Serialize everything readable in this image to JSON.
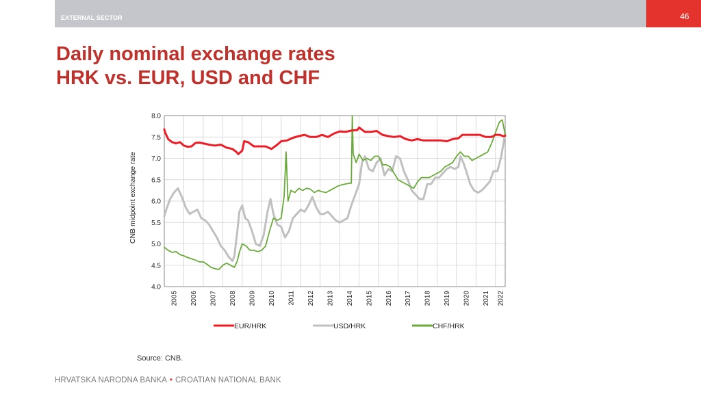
{
  "header": {
    "section": "EXTERNAL SECTOR",
    "page_number": "46"
  },
  "title": {
    "line1": "Daily nominal exchange rates",
    "line2": "HRK vs. EUR, USD and CHF"
  },
  "source": "Source: CNB.",
  "footer": {
    "left": "HRVATSKA NARODNA BANKA",
    "separator": "•",
    "right": "CROATIAN NATIONAL BANK"
  },
  "colors": {
    "brand_red": "#e4332d",
    "title_red": "#c0312b",
    "eur": "#ee1c25",
    "usd": "#c0c0c0",
    "chf": "#6aaa3a"
  },
  "chart_data": {
    "type": "line",
    "ylabel": "CNB midpoint exchange rate",
    "xlabel": "",
    "ylim": [
      4.0,
      8.0
    ],
    "yticks": [
      "4.0",
      "4.5",
      "5.0",
      "5.5",
      "6.0",
      "6.5",
      "7.0",
      "7.5",
      "8.0"
    ],
    "xlim": [
      2005.0,
      2022.5
    ],
    "xticks": [
      "2005",
      "2006",
      "2007",
      "2008",
      "2009",
      "2010",
      "2011",
      "2012",
      "2013",
      "2014",
      "2015",
      "2016",
      "2017",
      "2018",
      "2019",
      "2020",
      "2021",
      "2022"
    ],
    "grid": true,
    "legend_position": "bottom",
    "series": [
      {
        "name": "EUR/HRK",
        "color": "#ee1c25",
        "x": [
          2005.0,
          2005.05,
          2005.2,
          2005.4,
          2005.6,
          2005.8,
          2006.0,
          2006.2,
          2006.4,
          2006.6,
          2006.8,
          2007.0,
          2007.3,
          2007.6,
          2007.9,
          2008.2,
          2008.5,
          2008.7,
          2008.8,
          2009.0,
          2009.1,
          2009.3,
          2009.6,
          2009.9,
          2010.2,
          2010.5,
          2010.8,
          2011.0,
          2011.3,
          2011.6,
          2011.9,
          2012.2,
          2012.5,
          2012.8,
          2013.1,
          2013.4,
          2013.7,
          2014.0,
          2014.3,
          2014.6,
          2014.9,
          2015.0,
          2015.3,
          2015.6,
          2015.9,
          2016.2,
          2016.5,
          2016.8,
          2017.1,
          2017.4,
          2017.7,
          2018.0,
          2018.3,
          2018.6,
          2018.9,
          2019.2,
          2019.5,
          2019.8,
          2020.1,
          2020.3,
          2020.6,
          2020.9,
          2021.2,
          2021.5,
          2021.8,
          2022.0,
          2022.2,
          2022.4,
          2022.5
        ],
        "values": [
          7.68,
          7.6,
          7.45,
          7.38,
          7.35,
          7.38,
          7.3,
          7.27,
          7.28,
          7.36,
          7.37,
          7.35,
          7.32,
          7.3,
          7.32,
          7.25,
          7.22,
          7.15,
          7.1,
          7.18,
          7.4,
          7.38,
          7.28,
          7.28,
          7.28,
          7.22,
          7.32,
          7.4,
          7.42,
          7.48,
          7.52,
          7.55,
          7.5,
          7.5,
          7.55,
          7.5,
          7.58,
          7.63,
          7.62,
          7.65,
          7.66,
          7.72,
          7.62,
          7.62,
          7.64,
          7.55,
          7.52,
          7.5,
          7.52,
          7.45,
          7.42,
          7.45,
          7.42,
          7.42,
          7.42,
          7.42,
          7.4,
          7.45,
          7.47,
          7.55,
          7.55,
          7.55,
          7.55,
          7.5,
          7.5,
          7.55,
          7.55,
          7.52,
          7.53
        ]
      },
      {
        "name": "USD/HRK",
        "color": "#c0c0c0",
        "x": [
          2005.0,
          2005.1,
          2005.3,
          2005.5,
          2005.7,
          2005.9,
          2006.1,
          2006.3,
          2006.5,
          2006.7,
          2006.9,
          2007.1,
          2007.3,
          2007.5,
          2007.7,
          2007.9,
          2008.1,
          2008.3,
          2008.5,
          2008.6,
          2008.75,
          2008.85,
          2009.0,
          2009.15,
          2009.3,
          2009.5,
          2009.7,
          2009.9,
          2010.1,
          2010.3,
          2010.45,
          2010.6,
          2010.8,
          2011.0,
          2011.2,
          2011.4,
          2011.6,
          2011.8,
          2012.0,
          2012.2,
          2012.4,
          2012.6,
          2012.8,
          2013.0,
          2013.2,
          2013.4,
          2013.6,
          2013.8,
          2014.0,
          2014.2,
          2014.4,
          2014.6,
          2014.8,
          2015.0,
          2015.15,
          2015.3,
          2015.5,
          2015.7,
          2015.9,
          2016.1,
          2016.3,
          2016.5,
          2016.7,
          2016.9,
          2017.1,
          2017.3,
          2017.5,
          2017.7,
          2017.9,
          2018.1,
          2018.3,
          2018.5,
          2018.7,
          2018.9,
          2019.1,
          2019.3,
          2019.5,
          2019.7,
          2019.9,
          2020.1,
          2020.2,
          2020.35,
          2020.5,
          2020.7,
          2020.9,
          2021.1,
          2021.3,
          2021.5,
          2021.7,
          2021.9,
          2022.1,
          2022.3,
          2022.5
        ],
        "values": [
          5.65,
          5.8,
          6.05,
          6.2,
          6.3,
          6.1,
          5.85,
          5.7,
          5.75,
          5.8,
          5.6,
          5.55,
          5.45,
          5.3,
          5.15,
          4.95,
          4.85,
          4.7,
          4.6,
          4.72,
          5.3,
          5.75,
          5.9,
          5.6,
          5.55,
          5.3,
          5.0,
          4.95,
          5.2,
          5.75,
          6.05,
          5.7,
          5.45,
          5.4,
          5.15,
          5.3,
          5.6,
          5.7,
          5.8,
          5.75,
          5.9,
          6.1,
          5.85,
          5.7,
          5.7,
          5.75,
          5.65,
          5.55,
          5.5,
          5.55,
          5.6,
          5.9,
          6.15,
          6.4,
          6.9,
          7.05,
          6.75,
          6.7,
          6.9,
          7.0,
          6.6,
          6.75,
          6.7,
          7.05,
          7.0,
          6.7,
          6.5,
          6.25,
          6.15,
          6.05,
          6.05,
          6.4,
          6.4,
          6.55,
          6.55,
          6.65,
          6.75,
          6.8,
          6.75,
          6.8,
          7.05,
          6.9,
          6.7,
          6.4,
          6.25,
          6.2,
          6.25,
          6.35,
          6.45,
          6.7,
          6.7,
          7.05,
          7.6
        ]
      },
      {
        "name": "CHF/HRK",
        "color": "#6aaa3a",
        "x": [
          2005.0,
          2005.2,
          2005.4,
          2005.6,
          2005.8,
          2006.0,
          2006.2,
          2006.4,
          2006.6,
          2006.8,
          2007.0,
          2007.2,
          2007.4,
          2007.6,
          2007.8,
          2008.0,
          2008.2,
          2008.4,
          2008.6,
          2008.75,
          2008.85,
          2009.0,
          2009.2,
          2009.4,
          2009.6,
          2009.8,
          2010.0,
          2010.2,
          2010.4,
          2010.6,
          2010.8,
          2011.0,
          2011.15,
          2011.25,
          2011.35,
          2011.5,
          2011.7,
          2011.9,
          2012.1,
          2012.3,
          2012.5,
          2012.7,
          2012.9,
          2013.1,
          2013.3,
          2013.5,
          2013.7,
          2013.9,
          2014.1,
          2014.3,
          2014.5,
          2014.6,
          2014.65,
          2014.7,
          2014.85,
          2015.0,
          2015.2,
          2015.4,
          2015.6,
          2015.8,
          2016.0,
          2016.2,
          2016.4,
          2016.6,
          2016.8,
          2017.0,
          2017.2,
          2017.4,
          2017.6,
          2017.8,
          2018.0,
          2018.2,
          2018.4,
          2018.6,
          2018.8,
          2019.0,
          2019.2,
          2019.4,
          2019.6,
          2019.8,
          2020.0,
          2020.2,
          2020.4,
          2020.6,
          2020.8,
          2021.0,
          2021.2,
          2021.4,
          2021.6,
          2021.8,
          2022.0,
          2022.2,
          2022.35,
          2022.5
        ],
        "values": [
          4.92,
          4.85,
          4.8,
          4.82,
          4.75,
          4.72,
          4.68,
          4.65,
          4.62,
          4.58,
          4.58,
          4.52,
          4.45,
          4.42,
          4.4,
          4.5,
          4.55,
          4.5,
          4.45,
          4.6,
          4.8,
          5.0,
          4.95,
          4.85,
          4.85,
          4.82,
          4.85,
          4.95,
          5.3,
          5.6,
          5.55,
          5.6,
          6.1,
          7.15,
          6.0,
          6.25,
          6.2,
          6.3,
          6.25,
          6.3,
          6.28,
          6.2,
          6.25,
          6.22,
          6.2,
          6.25,
          6.3,
          6.35,
          6.38,
          6.4,
          6.42,
          6.42,
          8.0,
          7.1,
          6.9,
          7.1,
          6.95,
          7.0,
          6.95,
          7.05,
          7.05,
          6.85,
          6.85,
          6.8,
          6.65,
          6.5,
          6.45,
          6.4,
          6.35,
          6.3,
          6.45,
          6.55,
          6.55,
          6.55,
          6.6,
          6.65,
          6.7,
          6.8,
          6.85,
          6.9,
          7.05,
          7.15,
          7.05,
          7.05,
          6.95,
          7.0,
          7.05,
          7.1,
          7.15,
          7.35,
          7.6,
          7.85,
          7.9,
          7.55
        ]
      }
    ]
  }
}
